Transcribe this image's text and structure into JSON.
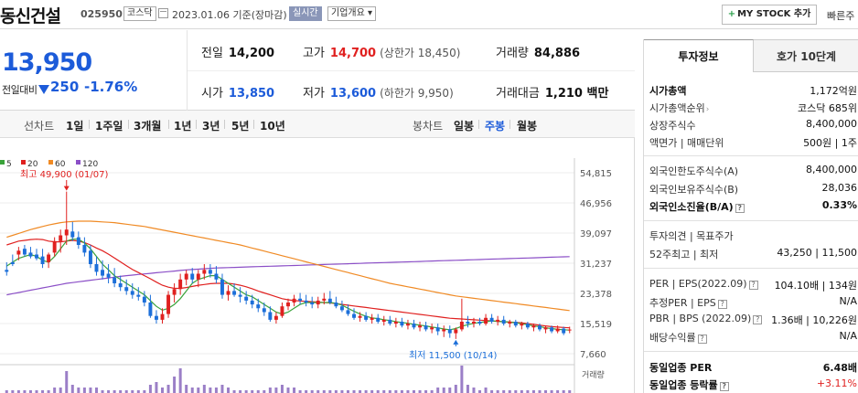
{
  "header": {
    "stock_name": "동신건설",
    "stock_code": "025950",
    "market_badge": "코스닥",
    "date_text": "2023.01.06 기준(장마감)",
    "realtime_badge": "실시간",
    "corp_info_badge": "기업개요 ▾",
    "mystock_label": "MY STOCK 추가",
    "mystock_plus": "+",
    "quick_link": "빠른주"
  },
  "quote": {
    "price": "13,950",
    "change_label": "전일대비",
    "change": "250",
    "change_rate": "-1.76%",
    "prev_close_label": "전일",
    "prev_close": "14,200",
    "high_label": "고가",
    "high": "14,700",
    "upper_limit": "(상한가 18,450)",
    "volume_label": "거래량",
    "volume": "84,886",
    "open_label": "시가",
    "open": "13,850",
    "low_label": "저가",
    "low": "13,600",
    "lower_limit": "(하한가 9,950)",
    "amount_label": "거래대금",
    "amount": "1,210 백만"
  },
  "toolbar": {
    "line_chart_label": "선차트",
    "periods": [
      "1일",
      "1주일",
      "3개월",
      "1년",
      "3년",
      "5년",
      "10년"
    ],
    "candle_chart_label": "봉차트",
    "candle_periods": [
      "일봉",
      "주봉",
      "월봉"
    ],
    "active_candle": "주봉"
  },
  "chart_data": {
    "type": "candlestick",
    "legend": [
      {
        "label": "5",
        "color": "#3aa33a"
      },
      {
        "label": "20",
        "color": "#e0201f"
      },
      {
        "label": "60",
        "color": "#f08a24"
      },
      {
        "label": "120",
        "color": "#8b4fc7"
      }
    ],
    "y_ticks": [
      "54,815",
      "46,956",
      "39,097",
      "31,237",
      "23,378",
      "15,519",
      "7,660"
    ],
    "ylim": [
      7660,
      54815
    ],
    "volume_label": "거래량",
    "max_annotation": "최고 49,900 (01/07)",
    "min_annotation": "최저 11,500 (10/14)",
    "max_index": 10,
    "min_index": 75,
    "candles": [
      {
        "o": 29500,
        "h": 31500,
        "l": 28000,
        "c": 29000
      },
      {
        "o": 31500,
        "h": 33500,
        "l": 30500,
        "c": 31000
      },
      {
        "o": 33500,
        "h": 35500,
        "l": 32000,
        "c": 34500
      },
      {
        "o": 35000,
        "h": 36000,
        "l": 33000,
        "c": 33500
      },
      {
        "o": 34000,
        "h": 35500,
        "l": 32500,
        "c": 33000
      },
      {
        "o": 33500,
        "h": 35000,
        "l": 32000,
        "c": 32500
      },
      {
        "o": 33000,
        "h": 35000,
        "l": 30000,
        "c": 31000
      },
      {
        "o": 31500,
        "h": 34000,
        "l": 30000,
        "c": 33500
      },
      {
        "o": 34000,
        "h": 38000,
        "l": 33000,
        "c": 37000
      },
      {
        "o": 37000,
        "h": 40000,
        "l": 34000,
        "c": 38500
      },
      {
        "o": 38500,
        "h": 49900,
        "l": 36000,
        "c": 40000
      },
      {
        "o": 39500,
        "h": 42000,
        "l": 37000,
        "c": 38000
      },
      {
        "o": 38000,
        "h": 39500,
        "l": 35000,
        "c": 36000
      },
      {
        "o": 36000,
        "h": 38000,
        "l": 33000,
        "c": 34000
      },
      {
        "o": 34500,
        "h": 36000,
        "l": 30000,
        "c": 31000
      },
      {
        "o": 31000,
        "h": 33000,
        "l": 28000,
        "c": 29000
      },
      {
        "o": 29500,
        "h": 32000,
        "l": 27000,
        "c": 28000
      },
      {
        "o": 28500,
        "h": 31000,
        "l": 26000,
        "c": 27500
      },
      {
        "o": 27500,
        "h": 30000,
        "l": 25000,
        "c": 26000
      },
      {
        "o": 26000,
        "h": 28000,
        "l": 24000,
        "c": 25000
      },
      {
        "o": 25000,
        "h": 27000,
        "l": 23000,
        "c": 24000
      },
      {
        "o": 24000,
        "h": 26000,
        "l": 22000,
        "c": 23000
      },
      {
        "o": 23000,
        "h": 25000,
        "l": 21500,
        "c": 22500
      },
      {
        "o": 22500,
        "h": 24000,
        "l": 20000,
        "c": 21000
      },
      {
        "o": 21000,
        "h": 23000,
        "l": 17000,
        "c": 17500
      },
      {
        "o": 17500,
        "h": 19000,
        "l": 15500,
        "c": 16500
      },
      {
        "o": 16500,
        "h": 19500,
        "l": 15500,
        "c": 18000
      },
      {
        "o": 18000,
        "h": 24000,
        "l": 17000,
        "c": 23000
      },
      {
        "o": 23000,
        "h": 26000,
        "l": 21000,
        "c": 24500
      },
      {
        "o": 24500,
        "h": 28500,
        "l": 23000,
        "c": 27000
      },
      {
        "o": 27000,
        "h": 29500,
        "l": 25500,
        "c": 28500
      },
      {
        "o": 28500,
        "h": 30000,
        "l": 26000,
        "c": 27000
      },
      {
        "o": 27000,
        "h": 29500,
        "l": 25000,
        "c": 28500
      },
      {
        "o": 28500,
        "h": 31000,
        "l": 27000,
        "c": 29500
      },
      {
        "o": 29500,
        "h": 31000,
        "l": 27500,
        "c": 28500
      },
      {
        "o": 28500,
        "h": 30500,
        "l": 26000,
        "c": 27000
      },
      {
        "o": 27000,
        "h": 28500,
        "l": 22000,
        "c": 23000
      },
      {
        "o": 23000,
        "h": 25500,
        "l": 21500,
        "c": 24000
      },
      {
        "o": 24000,
        "h": 26000,
        "l": 22500,
        "c": 23000
      },
      {
        "o": 23000,
        "h": 25000,
        "l": 21000,
        "c": 22500
      },
      {
        "o": 22500,
        "h": 24000,
        "l": 20500,
        "c": 21500
      },
      {
        "o": 21500,
        "h": 23000,
        "l": 19500,
        "c": 20500
      },
      {
        "o": 20500,
        "h": 22000,
        "l": 18500,
        "c": 19500
      },
      {
        "o": 19500,
        "h": 21000,
        "l": 17500,
        "c": 18500
      },
      {
        "o": 18500,
        "h": 20000,
        "l": 16000,
        "c": 16500
      },
      {
        "o": 16500,
        "h": 18500,
        "l": 15500,
        "c": 17500
      },
      {
        "o": 17500,
        "h": 21000,
        "l": 17000,
        "c": 20000
      },
      {
        "o": 20000,
        "h": 22000,
        "l": 19000,
        "c": 21000
      },
      {
        "o": 21000,
        "h": 23000,
        "l": 20000,
        "c": 22000
      },
      {
        "o": 22000,
        "h": 23500,
        "l": 20500,
        "c": 21500
      },
      {
        "o": 21500,
        "h": 23000,
        "l": 20000,
        "c": 21000
      },
      {
        "o": 21000,
        "h": 22500,
        "l": 19500,
        "c": 20500
      },
      {
        "o": 20500,
        "h": 22500,
        "l": 19500,
        "c": 21500
      },
      {
        "o": 21500,
        "h": 23500,
        "l": 20500,
        "c": 22000
      },
      {
        "o": 22000,
        "h": 24000,
        "l": 20500,
        "c": 21000
      },
      {
        "o": 21000,
        "h": 22500,
        "l": 19500,
        "c": 20000
      },
      {
        "o": 20000,
        "h": 21500,
        "l": 18500,
        "c": 19000
      },
      {
        "o": 19000,
        "h": 20500,
        "l": 17500,
        "c": 18000
      },
      {
        "o": 18000,
        "h": 19500,
        "l": 16500,
        "c": 17000
      },
      {
        "o": 17000,
        "h": 18500,
        "l": 16000,
        "c": 17500
      },
      {
        "o": 17500,
        "h": 18500,
        "l": 16000,
        "c": 16500
      },
      {
        "o": 16500,
        "h": 18000,
        "l": 15500,
        "c": 17000
      },
      {
        "o": 17000,
        "h": 18000,
        "l": 15500,
        "c": 16000
      },
      {
        "o": 16000,
        "h": 17500,
        "l": 15000,
        "c": 16500
      },
      {
        "o": 16500,
        "h": 17500,
        "l": 15000,
        "c": 15500
      },
      {
        "o": 15500,
        "h": 17000,
        "l": 14500,
        "c": 16000
      },
      {
        "o": 16000,
        "h": 17000,
        "l": 14500,
        "c": 15000
      },
      {
        "o": 15000,
        "h": 16500,
        "l": 14000,
        "c": 15500
      },
      {
        "o": 15500,
        "h": 16500,
        "l": 14000,
        "c": 14500
      },
      {
        "o": 14500,
        "h": 16000,
        "l": 13500,
        "c": 15000
      },
      {
        "o": 15000,
        "h": 16000,
        "l": 13500,
        "c": 14000
      },
      {
        "o": 14000,
        "h": 15500,
        "l": 13000,
        "c": 14500
      },
      {
        "o": 14500,
        "h": 15500,
        "l": 12500,
        "c": 13500
      },
      {
        "o": 13500,
        "h": 15000,
        "l": 12000,
        "c": 14000
      },
      {
        "o": 14000,
        "h": 15000,
        "l": 11800,
        "c": 13000
      },
      {
        "o": 13000,
        "h": 14500,
        "l": 11500,
        "c": 14000
      },
      {
        "o": 14000,
        "h": 22000,
        "l": 13500,
        "c": 16000
      },
      {
        "o": 16000,
        "h": 17500,
        "l": 14500,
        "c": 15500
      },
      {
        "o": 15500,
        "h": 17000,
        "l": 14500,
        "c": 16000
      },
      {
        "o": 16000,
        "h": 17000,
        "l": 15000,
        "c": 15500
      },
      {
        "o": 15500,
        "h": 18000,
        "l": 15000,
        "c": 17000
      },
      {
        "o": 17000,
        "h": 18000,
        "l": 15500,
        "c": 16000
      },
      {
        "o": 16000,
        "h": 17500,
        "l": 15000,
        "c": 16500
      },
      {
        "o": 16500,
        "h": 17500,
        "l": 15000,
        "c": 15500
      },
      {
        "o": 15500,
        "h": 16500,
        "l": 14500,
        "c": 16000
      },
      {
        "o": 16000,
        "h": 16500,
        "l": 14500,
        "c": 15000
      },
      {
        "o": 15000,
        "h": 16000,
        "l": 14000,
        "c": 15500
      },
      {
        "o": 15500,
        "h": 16000,
        "l": 14000,
        "c": 14500
      },
      {
        "o": 14500,
        "h": 15500,
        "l": 13500,
        "c": 15000
      },
      {
        "o": 15000,
        "h": 15500,
        "l": 13500,
        "c": 14000
      },
      {
        "o": 14000,
        "h": 15000,
        "l": 13000,
        "c": 14500
      },
      {
        "o": 14500,
        "h": 15000,
        "l": 13000,
        "c": 13500
      },
      {
        "o": 13500,
        "h": 15000,
        "l": 13000,
        "c": 14200
      },
      {
        "o": 14200,
        "h": 14700,
        "l": 12500,
        "c": 13000
      },
      {
        "o": 13850,
        "h": 14700,
        "l": 13000,
        "c": 13950
      }
    ],
    "ma5": [
      30500,
      31500,
      32500,
      33000,
      33500,
      33000,
      32000,
      31500,
      33000,
      35000,
      37000,
      37500,
      37500,
      36500,
      35000,
      33000,
      31000,
      29500,
      28000,
      27000,
      26000,
      25000,
      24000,
      23000,
      21500,
      20000,
      19000,
      19500,
      20500,
      22000,
      24000,
      26000,
      27000,
      27500,
      28000,
      28000,
      27000,
      26000,
      25000,
      24000,
      23000,
      22500,
      21500,
      20500,
      19500,
      18500,
      18000,
      18500,
      19500,
      20500,
      21000,
      21000,
      21000,
      21000,
      21000,
      20800,
      20300,
      19500,
      18700,
      18000,
      17400,
      17000,
      16800,
      16500,
      16300,
      16000,
      15800,
      15600,
      15300,
      15100,
      14900,
      14600,
      14400,
      14100,
      13900,
      14200,
      14800,
      15200,
      15600,
      15800,
      16000,
      16200,
      16100,
      16000,
      15900,
      15700,
      15500,
      15200,
      14900,
      14700,
      14400,
      14200,
      14000,
      13900,
      13800
    ],
    "ma20": [
      36000,
      36500,
      37000,
      37200,
      37400,
      37500,
      37400,
      37000,
      36800,
      36800,
      37000,
      37200,
      37000,
      36600,
      36000,
      35200,
      34500,
      33600,
      32600,
      31600,
      30600,
      29600,
      28800,
      28000,
      27200,
      26300,
      25500,
      25000,
      24700,
      24700,
      24900,
      25200,
      25500,
      25700,
      25900,
      26000,
      26000,
      26000,
      25800,
      25500,
      25100,
      24600,
      24000,
      23500,
      23000,
      22500,
      22000,
      21700,
      21500,
      21400,
      21300,
      21200,
      21100,
      21000,
      20900,
      20700,
      20500,
      20300,
      20100,
      19900,
      19700,
      19500,
      19300,
      19100,
      18900,
      18700,
      18500,
      18300,
      18100,
      17900,
      17700,
      17500,
      17300,
      17100,
      16900,
      16800,
      16700,
      16600,
      16500,
      16400,
      16300,
      16200,
      16100,
      16000,
      15900,
      15800,
      15700,
      15500,
      15300,
      15100,
      14900,
      14700,
      14600,
      14500,
      14400
    ],
    "ma60": [
      38000,
      38500,
      39000,
      39500,
      40000,
      40400,
      40800,
      41200,
      41500,
      41800,
      42000,
      42100,
      42200,
      42200,
      42200,
      42100,
      42000,
      41900,
      41800,
      41600,
      41400,
      41200,
      41000,
      40800,
      40500,
      40200,
      39900,
      39600,
      39300,
      39000,
      38700,
      38400,
      38100,
      37800,
      37500,
      37200,
      36900,
      36600,
      36300,
      36000,
      35600,
      35200,
      34800,
      34400,
      34000,
      33600,
      33200,
      32800,
      32400,
      32000,
      31600,
      31200,
      30800,
      30400,
      30000,
      29600,
      29200,
      28800,
      28400,
      28000,
      27600,
      27200,
      26800,
      26400,
      26000,
      25700,
      25400,
      25100,
      24800,
      24500,
      24200,
      23900,
      23600,
      23300,
      23000,
      22700,
      22500,
      22300,
      22100,
      21900,
      21700,
      21500,
      21300,
      21100,
      20900,
      20700,
      20500,
      20300,
      20100,
      19900,
      19700,
      19500,
      19300,
      19100,
      18900
    ],
    "ma120": [
      23000,
      23300,
      23600,
      23900,
      24200,
      24500,
      24800,
      25100,
      25400,
      25700,
      26000,
      26200,
      26400,
      26600,
      26800,
      27000,
      27200,
      27400,
      27600,
      27800,
      28000,
      28150,
      28300,
      28450,
      28600,
      28750,
      28900,
      29050,
      29200,
      29350,
      29500,
      29600,
      29700,
      29800,
      29900,
      30000,
      30050,
      30100,
      30150,
      30200,
      30250,
      30300,
      30350,
      30400,
      30450,
      30500,
      30550,
      30600,
      30650,
      30700,
      30750,
      30800,
      30850,
      30900,
      30950,
      31000,
      31050,
      31100,
      31150,
      31200,
      31250,
      31300,
      31350,
      31400,
      31450,
      31500,
      31550,
      31600,
      31650,
      31700,
      31750,
      31800,
      31850,
      31900,
      31950,
      32000,
      32050,
      32100,
      32150,
      32200,
      32250,
      32300,
      32350,
      32400,
      32450,
      32500,
      32550,
      32600,
      32650,
      32700,
      32750,
      32800,
      32850,
      32900,
      32950
    ],
    "volume": [
      1,
      1,
      1,
      1,
      1,
      1,
      1,
      1,
      2,
      2,
      8,
      3,
      2,
      2,
      2,
      2,
      1,
      1,
      1,
      1,
      1,
      1,
      1,
      1,
      3,
      4,
      2,
      3,
      6,
      9,
      3,
      2,
      2,
      3,
      2,
      2,
      3,
      2,
      1,
      1,
      1,
      1,
      1,
      1,
      2,
      2,
      3,
      2,
      2,
      1,
      1,
      1,
      1,
      1,
      1,
      1,
      1,
      1,
      1,
      1,
      1,
      1,
      1,
      1,
      1,
      1,
      1,
      1,
      1,
      1,
      1,
      1,
      2,
      2,
      2,
      3,
      10,
      3,
      2,
      1,
      2,
      1,
      1,
      1,
      1,
      1,
      1,
      1,
      1,
      1,
      1,
      1,
      1,
      1,
      1
    ]
  },
  "panel": {
    "tab_invest": "투자정보",
    "tab_hoga": "호가 10단계",
    "rows1": [
      {
        "label": "시가총액",
        "value": "1,172억원"
      },
      {
        "label": "시가총액순위",
        "value": "코스닥 685위"
      },
      {
        "label": "상장주식수",
        "value": "8,400,000"
      },
      {
        "label": "액면가 | 매매단위",
        "value": "500원 | 1주"
      }
    ],
    "rows2": [
      {
        "label": "외국인한도주식수(A)",
        "value": "8,400,000"
      },
      {
        "label": "외국인보유주식수(B)",
        "value": "28,036"
      },
      {
        "label": "외국인소진율(B/A)",
        "value": "0.33%"
      }
    ],
    "rows3": [
      {
        "label": "투자의견 | 목표주가",
        "value": ""
      },
      {
        "label": "52주최고 | 최저",
        "value": "43,250 | 11,500"
      }
    ],
    "rows4": [
      {
        "label": "PER | EPS(2022.09)",
        "value": "104.10배 | 134원"
      },
      {
        "label": "추정PER | EPS",
        "value": "N/A"
      },
      {
        "label": "PBR | BPS (2022.09)",
        "value": "1.36배 | 10,226원"
      },
      {
        "label": "배당수익률",
        "value": "N/A"
      }
    ],
    "rows5": [
      {
        "label": "동일업종 PER",
        "value": "6.48배"
      },
      {
        "label": "동일업종 등락률",
        "value": "+3.11%"
      }
    ],
    "help_mark": "?",
    "chevron": "›"
  }
}
